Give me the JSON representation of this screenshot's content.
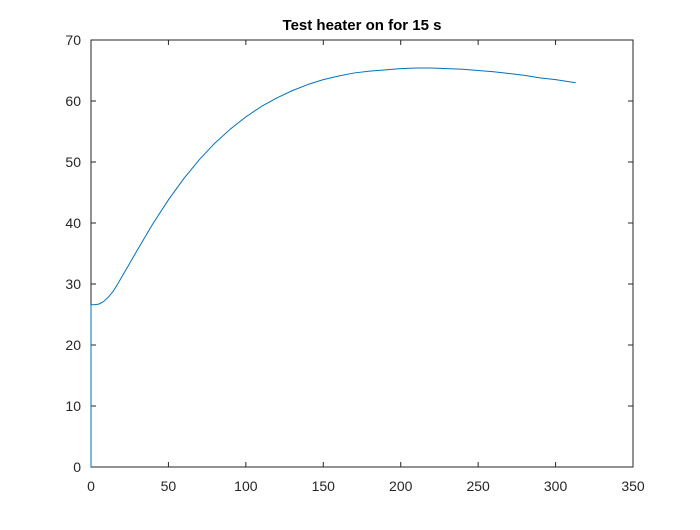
{
  "chart_data": {
    "type": "line",
    "title": "Test heater on for 15 s",
    "xlabel": "",
    "ylabel": "",
    "xlim": [
      0,
      350
    ],
    "ylim": [
      0,
      70
    ],
    "xticks": [
      0,
      50,
      100,
      150,
      200,
      250,
      300,
      350
    ],
    "yticks": [
      0,
      10,
      20,
      30,
      40,
      50,
      60,
      70
    ],
    "grid": false,
    "legend": "none",
    "line_color": "#0072BD",
    "series": [
      {
        "x": [
          0,
          0,
          2,
          5,
          8,
          11,
          14,
          17,
          20,
          25,
          30,
          40,
          50,
          60,
          70,
          80,
          90,
          100,
          110,
          120,
          130,
          140,
          150,
          160,
          170,
          180,
          190,
          200,
          210,
          220,
          230,
          240,
          250,
          260,
          270,
          280,
          290,
          300,
          313
        ],
        "y": [
          0,
          26.6,
          26.6,
          26.7,
          27.1,
          27.8,
          28.7,
          29.9,
          31.2,
          33.4,
          35.6,
          39.9,
          43.8,
          47.3,
          50.4,
          53.1,
          55.4,
          57.4,
          59.1,
          60.5,
          61.7,
          62.7,
          63.5,
          64.1,
          64.6,
          64.9,
          65.1,
          65.3,
          65.4,
          65.4,
          65.3,
          65.2,
          65.0,
          64.8,
          64.5,
          64.2,
          63.8,
          63.5,
          63.0
        ]
      }
    ]
  }
}
